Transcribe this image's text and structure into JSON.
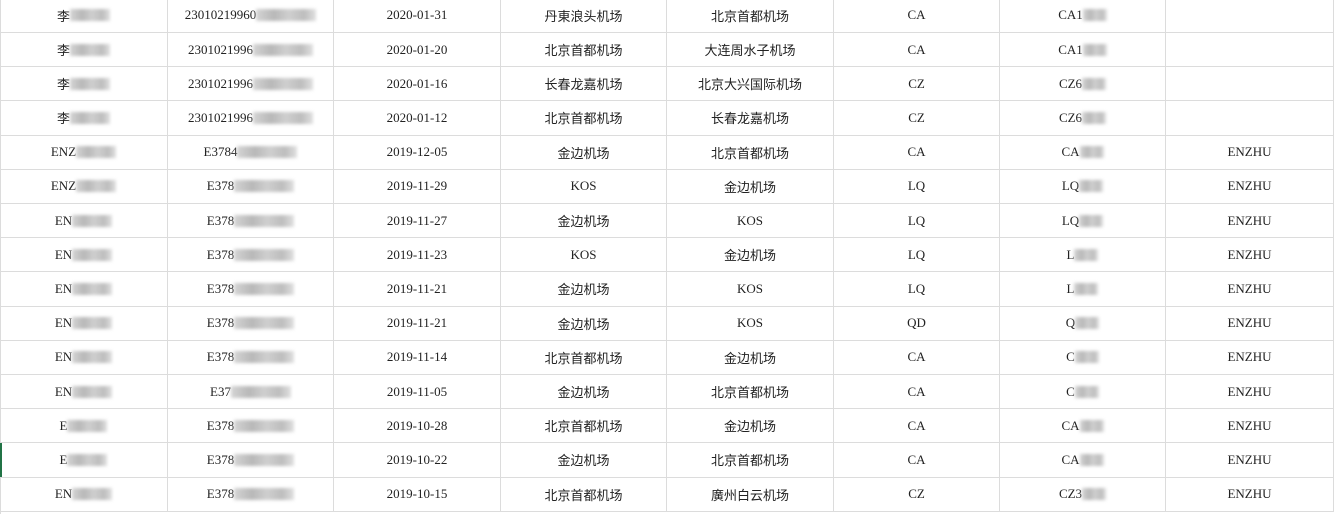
{
  "sheet": {
    "accent_color": "#217346",
    "rows": [
      {
        "name": "李",
        "id": "23010219960",
        "date": "2020-01-31",
        "from": "丹東浪头机场",
        "to": "北京首都机场",
        "airline": "CA",
        "flight": "CA1",
        "passenger": ""
      },
      {
        "name": "李",
        "id": "2301021996",
        "date": "2020-01-20",
        "from": "北京首都机场",
        "to": "大连周水子机场",
        "airline": "CA",
        "flight": "CA1",
        "passenger": ""
      },
      {
        "name": "李",
        "id": "2301021996",
        "date": "2020-01-16",
        "from": "长春龙嘉机场",
        "to": "北京大兴国际机场",
        "airline": "CZ",
        "flight": "CZ6",
        "passenger": ""
      },
      {
        "name": "李",
        "id": "2301021996",
        "date": "2020-01-12",
        "from": "北京首都机场",
        "to": "长春龙嘉机场",
        "airline": "CZ",
        "flight": "CZ6",
        "passenger": ""
      },
      {
        "name": "ENZ",
        "id": "E3784",
        "date": "2019-12-05",
        "from": "金边机场",
        "to": "北京首都机场",
        "airline": "CA",
        "flight": "CA",
        "passenger": "ENZHU"
      },
      {
        "name": "ENZ",
        "id": "E378",
        "date": "2019-11-29",
        "from": "KOS",
        "to": "金边机场",
        "airline": "LQ",
        "flight": "LQ",
        "passenger": "ENZHU"
      },
      {
        "name": "EN",
        "id": "E378",
        "date": "2019-11-27",
        "from": "金边机场",
        "to": "KOS",
        "airline": "LQ",
        "flight": "LQ",
        "passenger": "ENZHU"
      },
      {
        "name": "EN",
        "id": "E378",
        "date": "2019-11-23",
        "from": "KOS",
        "to": "金边机场",
        "airline": "LQ",
        "flight": "L",
        "passenger": "ENZHU"
      },
      {
        "name": "EN",
        "id": "E378",
        "date": "2019-11-21",
        "from": "金边机场",
        "to": "KOS",
        "airline": "LQ",
        "flight": "L",
        "passenger": "ENZHU"
      },
      {
        "name": "EN",
        "id": "E378",
        "date": "2019-11-21",
        "from": "金边机场",
        "to": "KOS",
        "airline": "QD",
        "flight": "Q",
        "passenger": "ENZHU"
      },
      {
        "name": "EN",
        "id": "E378",
        "date": "2019-11-14",
        "from": "北京首都机场",
        "to": "金边机场",
        "airline": "CA",
        "flight": "C",
        "passenger": "ENZHU"
      },
      {
        "name": "EN",
        "id": "E37",
        "date": "2019-11-05",
        "from": "金边机场",
        "to": "北京首都机场",
        "airline": "CA",
        "flight": "C",
        "passenger": "ENZHU"
      },
      {
        "name": "E",
        "id": "E378",
        "date": "2019-10-28",
        "from": "北京首都机场",
        "to": "金边机场",
        "airline": "CA",
        "flight": "CA",
        "passenger": "ENZHU"
      },
      {
        "name": "E",
        "id": "E378",
        "date": "2019-10-22",
        "from": "金边机场",
        "to": "北京首都机场",
        "airline": "CA",
        "flight": "CA",
        "passenger": "ENZHU"
      },
      {
        "name": "EN",
        "id": "E378",
        "date": "2019-10-15",
        "from": "北京首都机场",
        "to": "廣州白云机场",
        "airline": "CZ",
        "flight": "CZ3",
        "passenger": "ENZHU"
      }
    ]
  }
}
